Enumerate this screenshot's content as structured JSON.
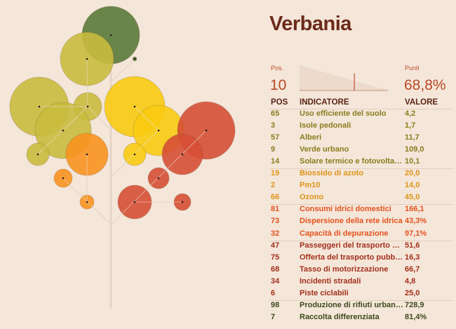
{
  "title": "Verbania",
  "summary": {
    "pos_label": "Pos.",
    "pos_value": "10",
    "points_label": "Punti",
    "points_value": "68,8%",
    "rank_marker_fraction": 0.62
  },
  "table": {
    "headers": {
      "pos": "POS",
      "indicator": "INDICATORE",
      "value": "VALORE"
    },
    "groups": [
      {
        "color": "#8a7d1f",
        "rows": [
          {
            "pos": "65",
            "indicator": "Uso efficiente del suolo",
            "value": "4,2"
          },
          {
            "pos": "3",
            "indicator": "Isole pedonali",
            "value": "1,7"
          },
          {
            "pos": "57",
            "indicator": "Alberi",
            "value": "11,7"
          },
          {
            "pos": "9",
            "indicator": "Verde urbano",
            "value": "109,0"
          },
          {
            "pos": "14",
            "indicator": "Solare termico e fotovoltaico",
            "value": "10,1"
          }
        ]
      },
      {
        "color": "#de9418",
        "rows": [
          {
            "pos": "19",
            "indicator": "Biossido di azoto",
            "value": "20,0"
          },
          {
            "pos": "2",
            "indicator": "Pm10",
            "value": "14,0"
          },
          {
            "pos": "66",
            "indicator": "Ozono",
            "value": "45,0"
          }
        ]
      },
      {
        "color": "#e4521e",
        "rows": [
          {
            "pos": "81",
            "indicator": "Consumi idrici domestici",
            "value": "166,1"
          },
          {
            "pos": "73",
            "indicator": "Dispersione della rete idrica",
            "value": "43,3%"
          },
          {
            "pos": "32",
            "indicator": "Capacità di depurazione",
            "value": "97,1%"
          }
        ]
      },
      {
        "color": "#a3301c",
        "rows": [
          {
            "pos": "47",
            "indicator": "Passeggeri del trasporto pu...",
            "value": "51,6"
          },
          {
            "pos": "75",
            "indicator": "Offerta del trasporto pubblico",
            "value": "16,3"
          },
          {
            "pos": "68",
            "indicator": "Tasso di motorizzazione",
            "value": "66,7"
          },
          {
            "pos": "34",
            "indicator": "Incidenti stradali",
            "value": "4,8"
          },
          {
            "pos": "6",
            "indicator": "Piste ciclabili",
            "value": "25,0"
          }
        ]
      },
      {
        "color": "#3d4a1c",
        "rows": [
          {
            "pos": "98",
            "indicator": "Produzione di rifiuti urbani p...",
            "value": "728,9"
          },
          {
            "pos": "7",
            "indicator": "Raccolta differenziata",
            "value": "81,4%"
          }
        ]
      }
    ]
  },
  "tree_colors": {
    "olive": "#c9bb3e",
    "yellow": "#f8cb12",
    "orange": "#f8921f",
    "red": "#d64f35",
    "green": "#5a7a38"
  }
}
